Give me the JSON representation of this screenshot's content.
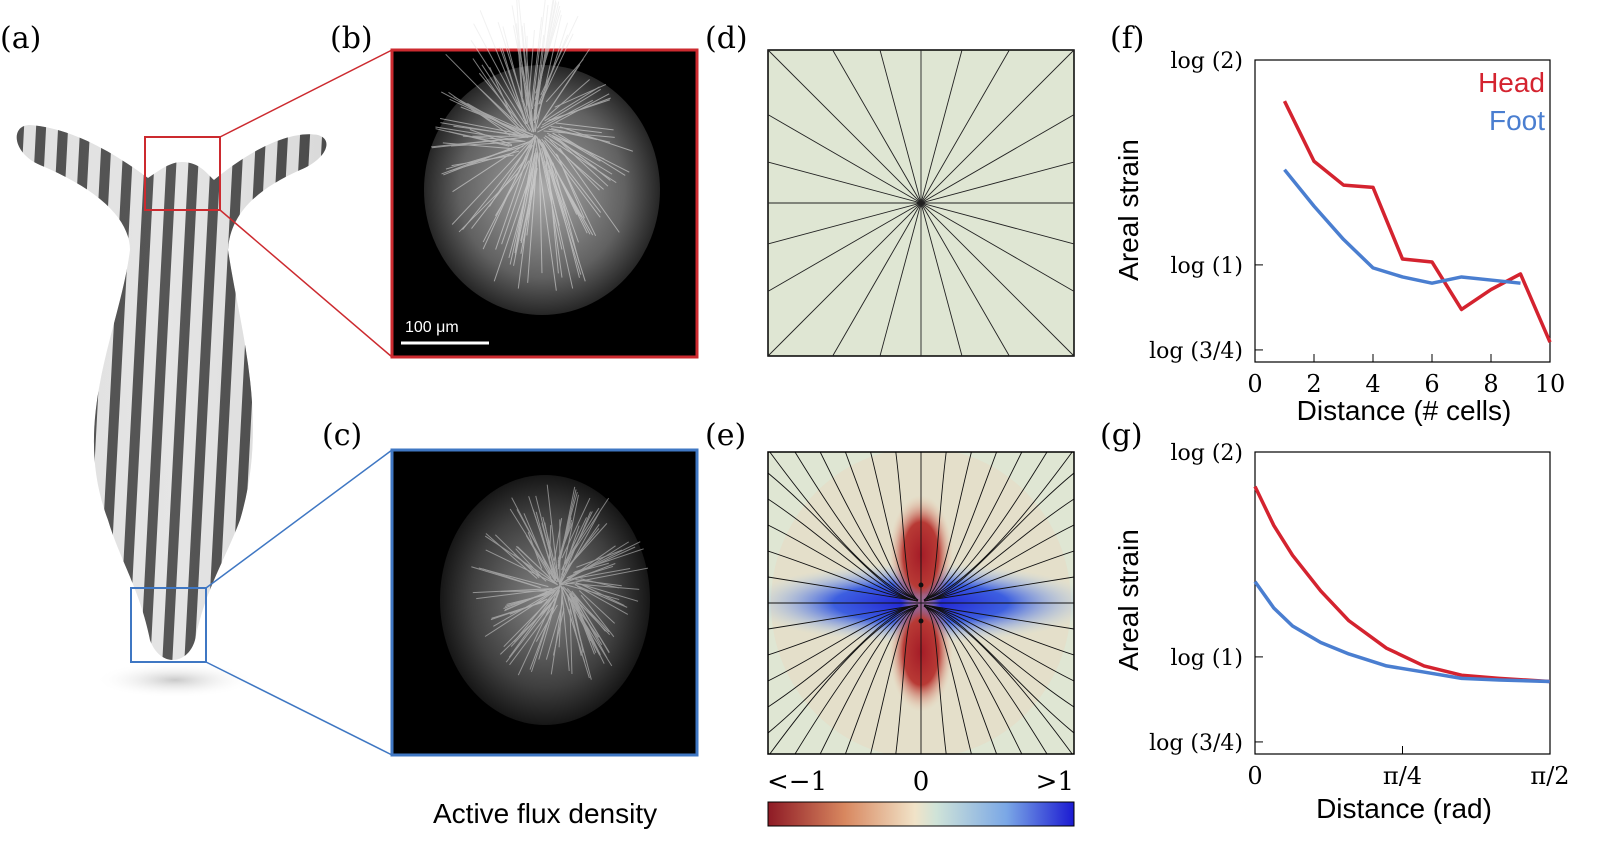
{
  "panels": {
    "a": "(a)",
    "b": "(b)",
    "c": "(c)",
    "d": "(d)",
    "e": "(e)",
    "f": "(f)",
    "g": "(g)"
  },
  "scalebar_label": "100 μm",
  "colorbar": {
    "label": "Active flux density",
    "ticks": [
      "<−1",
      "0",
      ">1"
    ],
    "colors": [
      "#8e1a25",
      "#d8875f",
      "#f1e3c8",
      "#cfe3d8",
      "#7aa7e6",
      "#1b1ad2"
    ]
  },
  "colors": {
    "head": "#d4232f",
    "foot": "#4a7ed0",
    "panel_bg": "#dfe6d3",
    "frame_red": "#cc2a2f",
    "frame_blue": "#3f77c3"
  },
  "icons": [
    "hydra-illustration",
    "microscope-image-head",
    "microscope-image-foot",
    "radial-field-diagram",
    "dipole-field-diagram"
  ],
  "chart_data": [
    {
      "panel": "(f)",
      "type": "line",
      "xlabel": "Distance (# cells)",
      "ylabel": "Areal strain",
      "xlim": [
        0,
        10
      ],
      "x_ticks": [
        "0",
        "2",
        "4",
        "6",
        "8",
        "10"
      ],
      "y_ticks": [
        "log (2)",
        "log (1)",
        "log (3/4)"
      ],
      "y_scale": "log",
      "legend_position": "top-right",
      "series": [
        {
          "name": "Head",
          "x": [
            1,
            2,
            3,
            4,
            5,
            6,
            7,
            8,
            9,
            10
          ],
          "y": [
            1.74,
            1.42,
            1.31,
            1.3,
            1.02,
            1.01,
            0.86,
            0.92,
            0.97,
            0.77
          ]
        },
        {
          "name": "Foot",
          "x": [
            1,
            2,
            3,
            4,
            5,
            6,
            7,
            8,
            9
          ],
          "y": [
            1.38,
            1.22,
            1.09,
            0.99,
            0.96,
            0.94,
            0.96,
            0.95,
            0.94
          ]
        }
      ]
    },
    {
      "panel": "(g)",
      "type": "line",
      "xlabel": "Distance (rad)",
      "ylabel": "Areal strain",
      "xlim": [
        0,
        1.5708
      ],
      "x_ticks": [
        "0",
        "π/4",
        "π/2"
      ],
      "y_ticks": [
        "log (2)",
        "log (1)",
        "log (3/4)"
      ],
      "y_scale": "log",
      "series": [
        {
          "x": [
            0.0,
            0.1,
            0.2,
            0.35,
            0.5,
            0.7,
            0.9,
            1.1,
            1.3,
            1.57
          ],
          "y": [
            1.78,
            1.56,
            1.41,
            1.25,
            1.13,
            1.03,
            0.97,
            0.94,
            0.93,
            0.92
          ]
        },
        {
          "x": [
            0.0,
            0.1,
            0.2,
            0.35,
            0.5,
            0.7,
            0.9,
            1.1,
            1.3,
            1.57
          ],
          "y": [
            1.29,
            1.18,
            1.11,
            1.05,
            1.01,
            0.97,
            0.95,
            0.93,
            0.925,
            0.92
          ]
        }
      ]
    }
  ]
}
